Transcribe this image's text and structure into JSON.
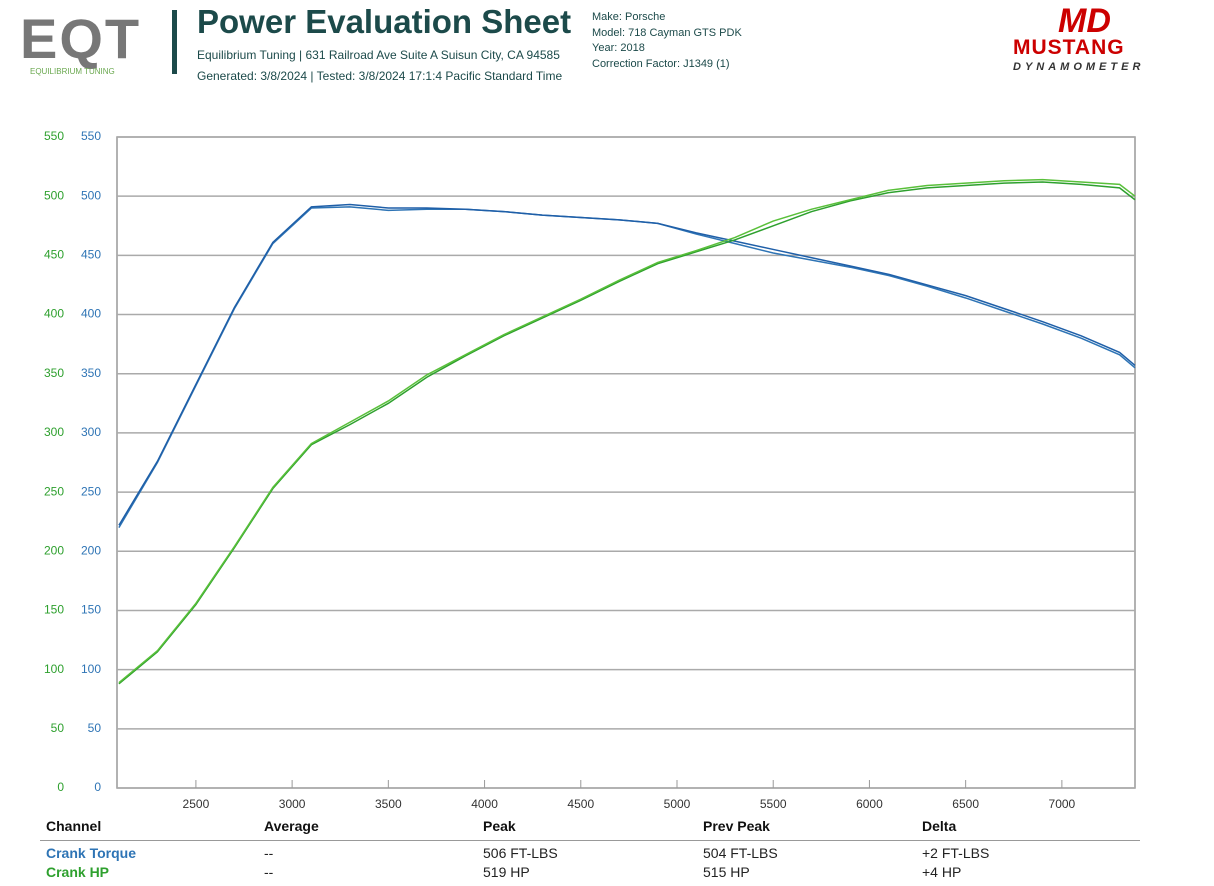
{
  "header": {
    "logo_text": "EQT",
    "logo_subtitle": "EQUILIBRIUM TUNING",
    "title": "Power Evaluation Sheet",
    "address": "Equilibrium Tuning | 631 Railroad Ave Suite A Suisun City, CA 94585",
    "generated": "Generated: 3/8/2024 | Tested: 3/8/2024 17:1:4 Pacific Standard Time",
    "vehicle": [
      "Make: Porsche",
      "Model: 718 Cayman GTS PDK",
      "Year: 2018",
      "Correction Factor: J1349 (1)"
    ],
    "brand_logo": "MD",
    "brand_name": "MUSTANG",
    "brand_subtitle": "DYNAMOMETER"
  },
  "chart_data": {
    "type": "line",
    "grid": true,
    "x": [
      2100,
      2300,
      2500,
      2700,
      2900,
      3100,
      3300,
      3500,
      3700,
      3900,
      4100,
      4300,
      4500,
      4700,
      4900,
      5100,
      5300,
      5500,
      5700,
      5900,
      6100,
      6300,
      6500,
      6700,
      6900,
      7100,
      7300,
      7380
    ],
    "xlim": [
      2090,
      7380
    ],
    "xticks": [
      2500,
      3000,
      3500,
      4000,
      4500,
      5000,
      5500,
      6000,
      6500,
      7000
    ],
    "ylim": [
      0,
      550
    ],
    "yticks": [
      0,
      50,
      100,
      150,
      200,
      250,
      300,
      350,
      400,
      450,
      500,
      550
    ],
    "y2lim": [
      0,
      550
    ],
    "y2ticks": [
      0,
      50,
      100,
      150,
      200,
      250,
      300,
      350,
      400,
      450,
      500,
      550
    ],
    "series": [
      {
        "color": "#2e74b5",
        "axis": "y2",
        "values": [
          220,
          275,
          340,
          405,
          460,
          490,
          491,
          488,
          489,
          489,
          487,
          484,
          482,
          480,
          477,
          468,
          460,
          452,
          446,
          440,
          433,
          424,
          414,
          403,
          392,
          380,
          366,
          355
        ]
      },
      {
        "color": "#1f5fa8",
        "axis": "y2",
        "values": [
          222,
          276,
          341,
          406,
          461,
          491,
          493,
          490,
          490,
          489,
          487,
          484,
          482,
          480,
          477,
          469,
          462,
          455,
          448,
          441,
          434,
          425,
          416,
          405,
          394,
          382,
          368,
          357
        ]
      },
      {
        "color": "#2ea02e",
        "values": [
          88,
          115,
          155,
          203,
          253,
          290,
          307,
          325,
          347,
          365,
          382,
          397,
          412,
          428,
          443,
          453,
          463,
          475,
          487,
          496,
          503,
          507,
          509,
          511,
          512,
          510,
          507,
          497
        ]
      },
      {
        "color": "#59c03a",
        "values": [
          89,
          116,
          156,
          204,
          254,
          291,
          309,
          327,
          349,
          366,
          383,
          398,
          413,
          429,
          444,
          454,
          465,
          479,
          489,
          497,
          505,
          509,
          511,
          513,
          514,
          512,
          510,
          500
        ]
      }
    ]
  },
  "table": {
    "columns": [
      "Channel",
      "Average",
      "Peak",
      "Prev Peak",
      "Delta"
    ],
    "rows": [
      [
        "Crank Torque",
        "--",
        "506 FT-LBS",
        "504 FT-LBS",
        "+2 FT-LBS"
      ],
      [
        "Crank HP",
        "--",
        "519 HP",
        "515 HP",
        "+4 HP"
      ]
    ]
  }
}
